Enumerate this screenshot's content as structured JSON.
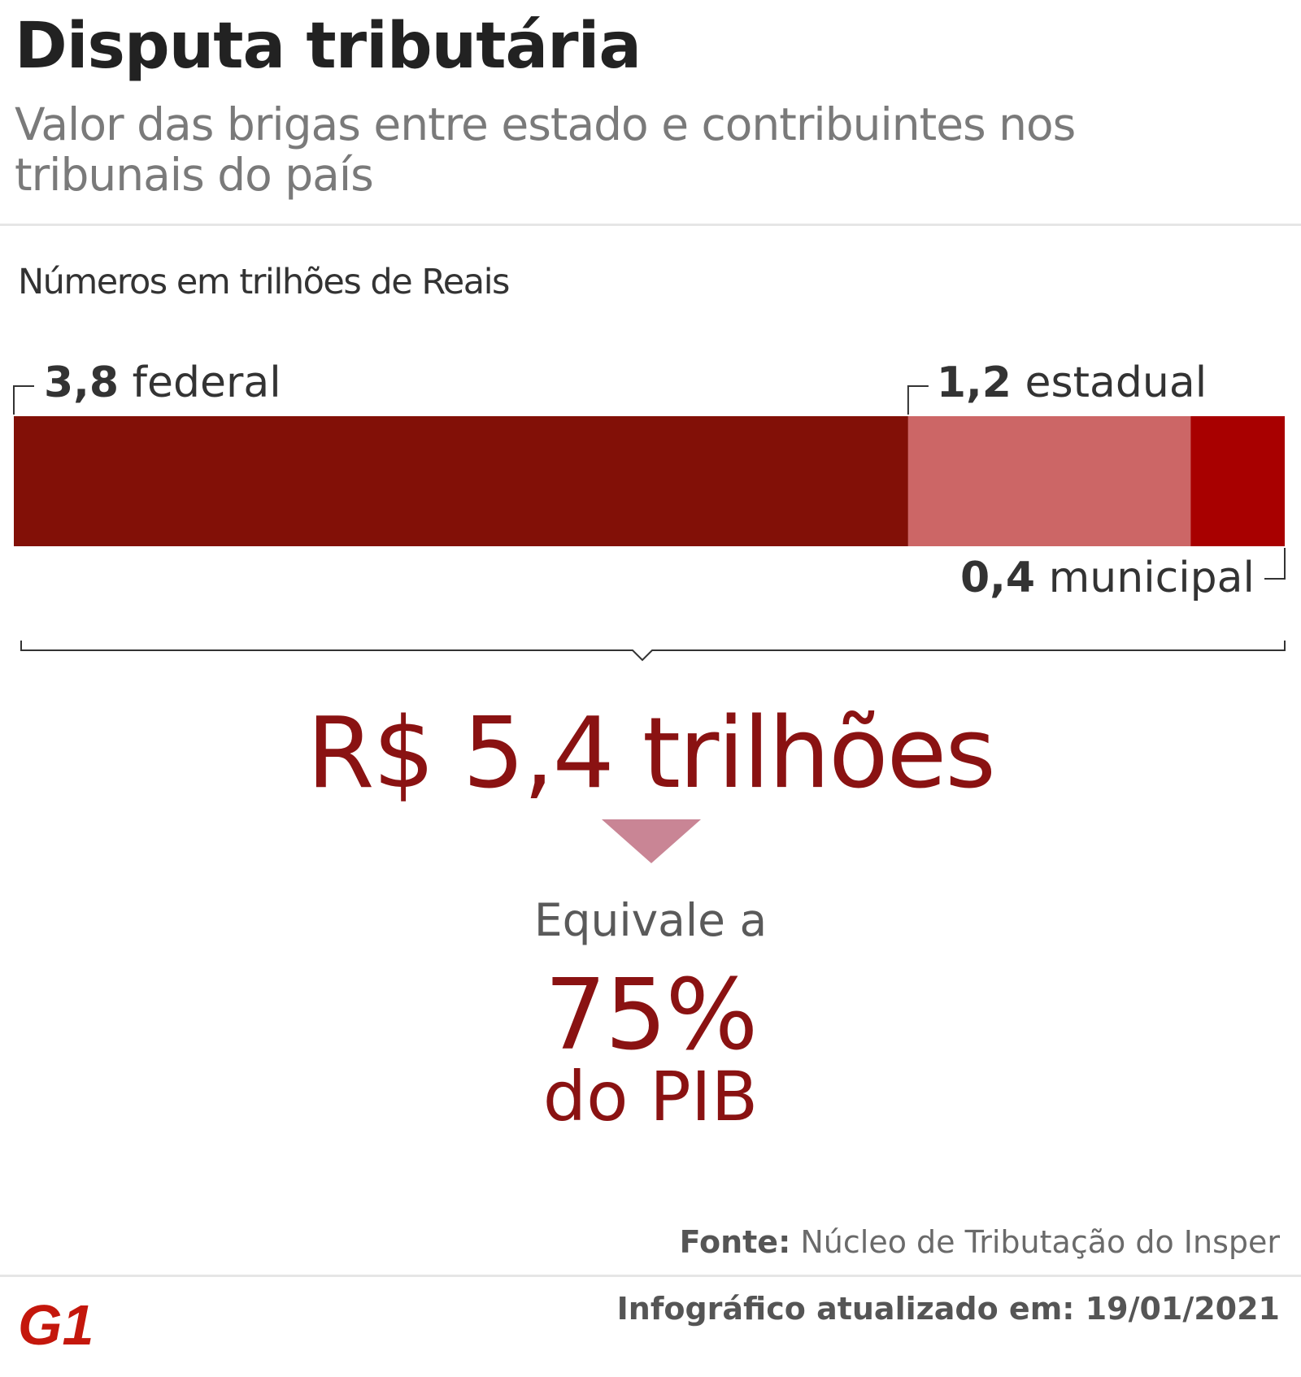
{
  "title": "Disputa tributária",
  "subtitle": "Valor das brigas entre estado e contribuintes nos tribunais do país",
  "unit_label": "Números em trilhões de Reais",
  "chart_data": {
    "type": "bar",
    "orientation": "horizontal-stacked",
    "categories": [
      "federal",
      "estadual",
      "municipal"
    ],
    "values": [
      3.8,
      1.2,
      0.4
    ],
    "value_labels": [
      "3,8",
      "1,2",
      "0,4"
    ],
    "colors": [
      "#821007",
      "#cc6666",
      "#a80000"
    ]
  },
  "total": "R$ 5,4 trilhões",
  "equivale_label": "Equivale a",
  "pct": "75%",
  "pib_label": "do PIB",
  "source": {
    "label": "Fonte:",
    "text": "Núcleo de Tributação do Insper"
  },
  "updated": "Infográfico atualizado em: 19/01/2021",
  "logo": {
    "text": "G1",
    "color": "#c4170c"
  },
  "colors": {
    "accent": "#8a1212",
    "arrow": "#c98595"
  }
}
